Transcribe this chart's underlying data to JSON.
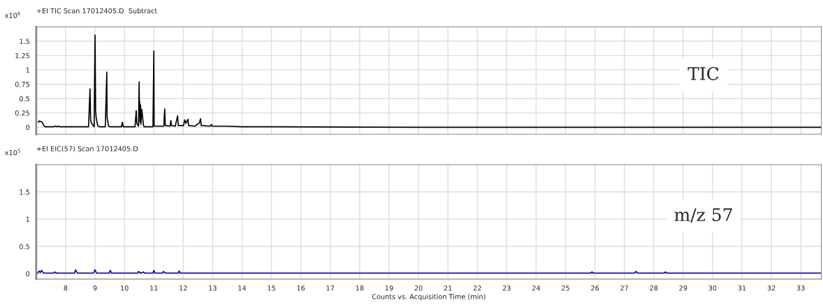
{
  "chart_data": [
    {
      "type": "line",
      "title": "+EI TIC Scan 17012405.D  Subtract",
      "ylabel": "x10$^{6}$",
      "annotations": [
        "TIC"
      ],
      "series": [
        {
          "color": "#000000",
          "x": [
            7.07,
            7.1,
            7.2,
            7.26,
            7.3,
            7.4,
            7.6,
            7.64,
            7.7,
            7.76,
            7.8,
            8.5,
            8.78,
            8.83,
            8.85,
            8.87,
            8.9,
            8.97,
            9.0,
            9.01,
            9.02,
            9.04,
            9.09,
            9.15,
            9.35,
            9.4,
            9.41,
            9.44,
            9.46,
            9.5,
            9.9,
            9.93,
            9.96,
            10.36,
            10.4,
            10.42,
            10.48,
            10.5,
            10.51,
            10.52,
            10.53,
            10.55,
            10.56,
            10.59,
            10.65,
            10.67,
            10.7,
            10.97,
            11.0,
            11.01,
            11.34,
            11.37,
            11.39,
            11.55,
            11.58,
            11.6,
            11.73,
            11.75,
            11.81,
            11.83,
            12.01,
            12.05,
            12.09,
            12.16,
            12.18,
            12.4,
            12.55,
            12.59,
            12.61,
            12.92,
            12.96,
            12.99,
            13.42,
            14.0,
            15.1,
            20.0,
            25.0,
            30.0,
            33.7
          ],
          "values": [
            0.09,
            0.11,
            0.09,
            0.03,
            0.01,
            0.01,
            0.01,
            0.02,
            0.01,
            0.02,
            0.01,
            0.01,
            0.01,
            0.67,
            0.13,
            0.08,
            0.06,
            0.01,
            1.61,
            1.04,
            0.29,
            0.17,
            0.03,
            0.01,
            0.01,
            0.96,
            0.17,
            0.09,
            0.02,
            0.01,
            0.01,
            0.09,
            0.01,
            0.01,
            0.29,
            0.07,
            0.02,
            0.79,
            0.23,
            0.45,
            0.09,
            0.39,
            0.05,
            0.31,
            0.03,
            0.01,
            0.01,
            0.01,
            1.33,
            0.02,
            0.02,
            0.32,
            0.03,
            0.02,
            0.12,
            0.03,
            0.02,
            0.07,
            0.2,
            0.03,
            0.03,
            0.13,
            0.07,
            0.14,
            0.03,
            0.02,
            0.08,
            0.15,
            0.03,
            0.02,
            0.05,
            0.02,
            0.02,
            0.01,
            0.01,
            0.0,
            0.0,
            0.0,
            0.0
          ]
        }
      ],
      "xlim": [
        7.0,
        33.7
      ],
      "ylim": [
        -0.12,
        1.75
      ],
      "xticks": [
        8,
        9,
        10,
        11,
        12,
        13,
        14,
        15,
        16,
        17,
        18,
        19,
        20,
        21,
        22,
        23,
        24,
        25,
        26,
        27,
        28,
        29,
        30,
        31,
        32,
        33
      ],
      "yticks": [
        0,
        0.25,
        0.5,
        0.75,
        1,
        1.25,
        1.5
      ],
      "tick_labels": "y",
      "grid": true
    },
    {
      "type": "line",
      "title": "+EI EIC(57) Scan 17012405.D",
      "ylabel": "x10$^{5}$",
      "xlabel": "Counts vs. Acquisition Time (min)",
      "annotations": [
        "m/z 57"
      ],
      "series": [
        {
          "color": "#0000c0",
          "x": [
            7.05,
            7.1,
            7.14,
            7.18,
            7.25,
            7.6,
            7.63,
            7.7,
            8.3,
            8.34,
            8.4,
            8.95,
            9.0,
            9.05,
            9.48,
            9.52,
            9.56,
            10.45,
            10.48,
            10.55,
            10.64,
            10.7,
            10.97,
            11.0,
            11.04,
            11.3,
            11.32,
            11.4,
            11.83,
            11.86,
            11.9,
            15.0,
            25.85,
            25.9,
            25.95,
            27.35,
            27.4,
            27.45,
            28.35,
            28.4,
            28.45,
            33.7
          ],
          "values": [
            0.01,
            0.05,
            0.02,
            0.06,
            0.01,
            0.01,
            0.03,
            0.01,
            0.01,
            0.07,
            0.01,
            0.01,
            0.07,
            0.01,
            0.01,
            0.06,
            0.01,
            0.01,
            0.04,
            0.01,
            0.03,
            0.01,
            0.01,
            0.06,
            0.01,
            0.01,
            0.04,
            0.01,
            0.01,
            0.05,
            0.01,
            0.01,
            0.01,
            0.03,
            0.01,
            0.01,
            0.04,
            0.01,
            0.01,
            0.03,
            0.01,
            0.01
          ]
        }
      ],
      "xlim": [
        7.0,
        33.7
      ],
      "ylim": [
        -0.1,
        2.0
      ],
      "xticks": [
        8,
        9,
        10,
        11,
        12,
        13,
        14,
        15,
        16,
        17,
        18,
        19,
        20,
        21,
        22,
        23,
        24,
        25,
        26,
        27,
        28,
        29,
        30,
        31,
        32,
        33
      ],
      "yticks": [
        0,
        0.5,
        1,
        1.5
      ],
      "grid": true
    }
  ]
}
